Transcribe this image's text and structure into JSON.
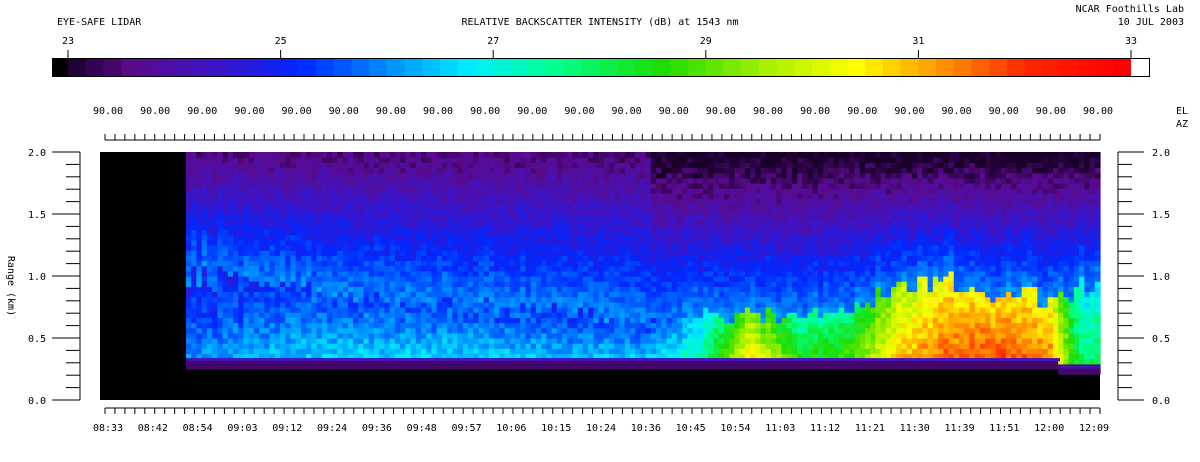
{
  "header": {
    "instrument": "EYE-SAFE LIDAR",
    "title": "RELATIVE BACKSCATTER INTENSITY (dB) at 1543 nm",
    "lab": "NCAR Foothills Lab",
    "date": "10 JUL 2003"
  },
  "chart_data": {
    "type": "heatmap",
    "title": "RELATIVE BACKSCATTER INTENSITY (dB) at 1543 nm",
    "colorbar": {
      "ticks": [
        23,
        25,
        27,
        29,
        31,
        33
      ],
      "range": [
        23,
        33
      ],
      "colors": [
        "#000000",
        "#5a0a8c",
        "#3a10c8",
        "#0030ff",
        "#0090ff",
        "#00f0ff",
        "#00ff80",
        "#20e000",
        "#a0f000",
        "#ffff00",
        "#ff9000",
        "#ff2000",
        "#ff0000",
        "#ffffff"
      ]
    },
    "ylabel": "Range (km)",
    "ylim": [
      0,
      2.0
    ],
    "yticks": [
      0.0,
      0.5,
      1.0,
      1.5,
      2.0
    ],
    "ytick_labels": [
      "0.0",
      "0.5",
      "1.0",
      "1.5",
      "2.0"
    ],
    "xtick_labels": [
      "08:33",
      "08:42",
      "08:54",
      "09:03",
      "09:12",
      "09:24",
      "09:36",
      "09:48",
      "09:57",
      "10:06",
      "10:15",
      "10:24",
      "10:36",
      "10:45",
      "10:54",
      "11:03",
      "11:12",
      "11:21",
      "11:30",
      "11:39",
      "11:51",
      "12:00",
      "12:09"
    ],
    "elevation_label": "EL",
    "azimuth_label": "AZ",
    "elevation_values": [
      "90.00",
      "90.00",
      "90.00",
      "90.00",
      "90.00",
      "90.00",
      "90.00",
      "90.00",
      "90.00",
      "90.00",
      "90.00",
      "90.00",
      "90.00",
      "90.00",
      "90.00",
      "90.00",
      "90.00",
      "90.00",
      "90.00",
      "90.00",
      "90.00",
      "90.00"
    ],
    "segments": [
      {
        "start_frac": 0.0,
        "end_frac": 0.086,
        "kind": "nodata"
      },
      {
        "start_frac": 0.086,
        "end_frac": 0.96,
        "kind": "scan",
        "surface_km": 0.33,
        "mix_top_km": 0.6
      },
      {
        "start_frac": 0.96,
        "end_frac": 1.0,
        "kind": "scan",
        "surface_km": 0.27,
        "mix_top_km": 1.0
      }
    ],
    "aerosol_layer_profile": [
      {
        "t": 0.09,
        "top_km": 1.0,
        "db": 26.0
      },
      {
        "t": 0.2,
        "top_km": 0.85,
        "db": 26.5
      },
      {
        "t": 0.35,
        "top_km": 0.75,
        "db": 26.6
      },
      {
        "t": 0.45,
        "top_km": 0.7,
        "db": 26.4
      },
      {
        "t": 0.55,
        "top_km": 0.6,
        "db": 26.5
      },
      {
        "t": 0.6,
        "top_km": 0.65,
        "db": 27.5
      },
      {
        "t": 0.65,
        "top_km": 0.7,
        "db": 30.5
      },
      {
        "t": 0.7,
        "top_km": 0.65,
        "db": 28.5
      },
      {
        "t": 0.75,
        "top_km": 0.7,
        "db": 28.8
      },
      {
        "t": 0.8,
        "top_km": 0.9,
        "db": 30.8
      },
      {
        "t": 0.85,
        "top_km": 0.92,
        "db": 31.6
      },
      {
        "t": 0.9,
        "top_km": 0.85,
        "db": 31.8
      },
      {
        "t": 0.95,
        "top_km": 0.8,
        "db": 31.4
      },
      {
        "t": 0.98,
        "top_km": 0.9,
        "db": 28.0
      }
    ]
  }
}
